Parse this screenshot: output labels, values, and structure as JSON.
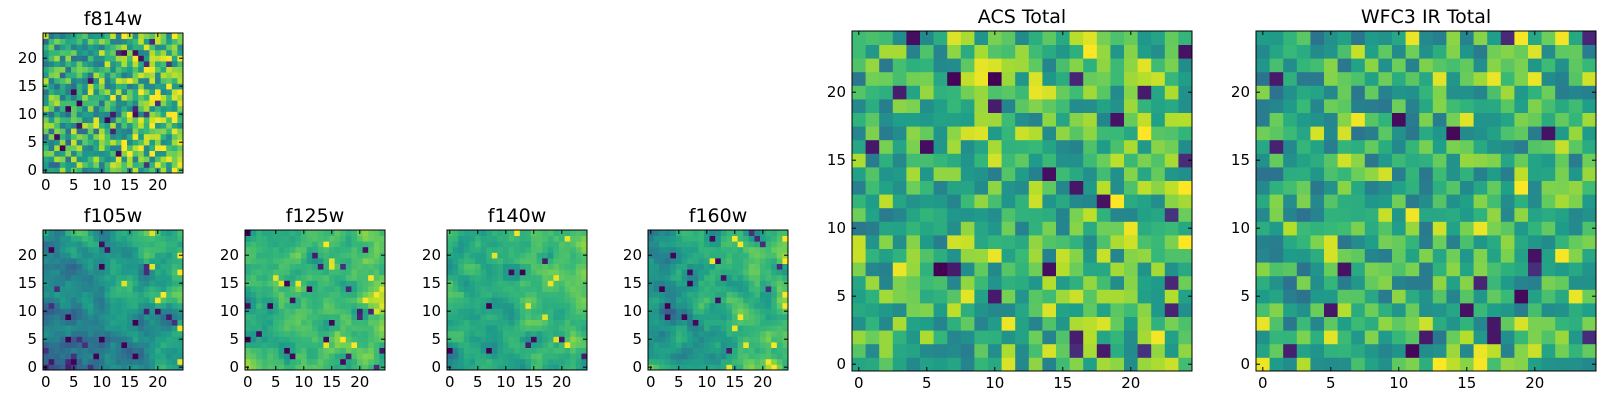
{
  "chart_data": [
    {
      "type": "heatmap",
      "id": "f814w",
      "title": "f814w",
      "grid": [
        25,
        25
      ],
      "xticks": [
        0,
        5,
        10,
        15,
        20
      ],
      "yticks": [
        0,
        5,
        10,
        15,
        20
      ],
      "seed": 11,
      "smooth": 0,
      "base": 0.64,
      "spread": 0.5,
      "darkChance": 0.035,
      "brightChance": 0.12,
      "rightBias": 0.2,
      "bottomBias": 0.0
    },
    {
      "type": "heatmap",
      "id": "f105w",
      "title": "f105w",
      "grid": [
        25,
        25
      ],
      "xticks": [
        0,
        5,
        10,
        15,
        20
      ],
      "yticks": [
        0,
        5,
        10,
        15,
        20
      ],
      "seed": 23,
      "smooth": 1,
      "base": 0.55,
      "spread": 0.55,
      "darkChance": 0.03,
      "brightChance": 0.05,
      "rightBias": 0.22,
      "bottomBias": -0.12
    },
    {
      "type": "heatmap",
      "id": "f125w",
      "title": "f125w",
      "grid": [
        25,
        25
      ],
      "xticks": [
        0,
        5,
        10,
        15,
        20
      ],
      "yticks": [
        0,
        5,
        10,
        15,
        20
      ],
      "seed": 37,
      "smooth": 1,
      "base": 0.68,
      "spread": 0.45,
      "darkChance": 0.025,
      "brightChance": 0.06,
      "rightBias": 0.12,
      "bottomBias": 0.0
    },
    {
      "type": "heatmap",
      "id": "f140w",
      "title": "f140w",
      "grid": [
        25,
        25
      ],
      "xticks": [
        0,
        5,
        10,
        15,
        20
      ],
      "yticks": [
        0,
        5,
        10,
        15,
        20
      ],
      "seed": 41,
      "smooth": 1,
      "base": 0.66,
      "spread": 0.45,
      "darkChance": 0.025,
      "brightChance": 0.06,
      "rightBias": 0.15,
      "bottomBias": -0.05
    },
    {
      "type": "heatmap",
      "id": "f160w",
      "title": "f160w",
      "grid": [
        25,
        25
      ],
      "xticks": [
        0,
        5,
        10,
        15,
        20
      ],
      "yticks": [
        0,
        5,
        10,
        15,
        20
      ],
      "seed": 53,
      "smooth": 1,
      "base": 0.6,
      "spread": 0.5,
      "darkChance": 0.03,
      "brightChance": 0.05,
      "rightBias": 0.25,
      "bottomBias": 0.0
    },
    {
      "type": "heatmap",
      "id": "acs-total",
      "title": "ACS Total",
      "grid": [
        25,
        25
      ],
      "xticks": [
        0,
        5,
        10,
        15,
        20
      ],
      "yticks": [
        0,
        5,
        10,
        15,
        20
      ],
      "seed": 67,
      "smooth": 0,
      "base": 0.66,
      "spread": 0.45,
      "darkChance": 0.03,
      "brightChance": 0.1,
      "rightBias": 0.08,
      "bottomBias": 0.0
    },
    {
      "type": "heatmap",
      "id": "wfc3-ir-total",
      "title": "WFC3 IR Total",
      "grid": [
        25,
        25
      ],
      "xticks": [
        0,
        5,
        10,
        15,
        20
      ],
      "yticks": [
        0,
        5,
        10,
        15,
        20
      ],
      "seed": 79,
      "smooth": 0,
      "base": 0.62,
      "spread": 0.45,
      "darkChance": 0.03,
      "brightChance": 0.06,
      "rightBias": 0.05,
      "bottomBias": 0.0
    }
  ]
}
